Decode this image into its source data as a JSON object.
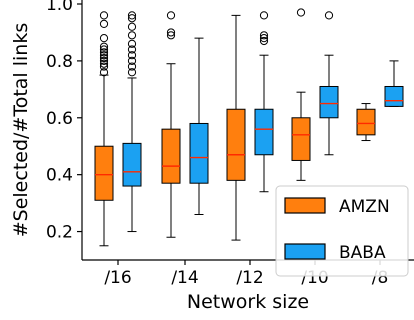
{
  "chart_data": {
    "type": "box",
    "xlabel": "Network size",
    "ylabel": "#Selected/#Total links",
    "categories": [
      "/16",
      "/14",
      "/12",
      "/10",
      "/8"
    ],
    "ylim": [
      0.1,
      1.0
    ],
    "yticks": [
      "0.2",
      "0.4",
      "0.6",
      "0.8",
      "1.0"
    ],
    "legend": {
      "placement": "lower-right"
    },
    "series": [
      {
        "name": "AMZN",
        "color": "#ff7f0e",
        "boxes": [
          {
            "whisker_low": 0.15,
            "q1": 0.31,
            "median": 0.4,
            "q3": 0.5,
            "whisker_high": 0.75,
            "outliers": [
              0.76,
              0.78,
              0.79,
              0.8,
              0.81,
              0.82,
              0.83,
              0.84,
              0.85,
              0.88,
              0.93,
              0.96
            ]
          },
          {
            "whisker_low": 0.18,
            "q1": 0.37,
            "median": 0.43,
            "q3": 0.56,
            "whisker_high": 0.79,
            "outliers": [
              0.89,
              0.9,
              0.96
            ]
          },
          {
            "whisker_low": 0.17,
            "q1": 0.38,
            "median": 0.47,
            "q3": 0.63,
            "whisker_high": 0.96,
            "outliers": []
          },
          {
            "whisker_low": 0.38,
            "q1": 0.45,
            "median": 0.54,
            "q3": 0.6,
            "whisker_high": 0.69,
            "outliers": [
              0.97
            ]
          },
          {
            "whisker_low": 0.52,
            "q1": 0.54,
            "median": 0.58,
            "q3": 0.63,
            "whisker_high": 0.65,
            "outliers": []
          }
        ]
      },
      {
        "name": "BABA",
        "color": "#1ba1f2",
        "boxes": [
          {
            "whisker_low": 0.2,
            "q1": 0.36,
            "median": 0.41,
            "q3": 0.51,
            "whisker_high": 0.74,
            "outliers": [
              0.76,
              0.78,
              0.8,
              0.82,
              0.84,
              0.86,
              0.89,
              0.92,
              0.95,
              0.96
            ]
          },
          {
            "whisker_low": 0.26,
            "q1": 0.37,
            "median": 0.46,
            "q3": 0.58,
            "whisker_high": 0.88,
            "outliers": []
          },
          {
            "whisker_low": 0.34,
            "q1": 0.47,
            "median": 0.56,
            "q3": 0.63,
            "whisker_high": 0.82,
            "outliers": [
              0.87,
              0.88,
              0.89,
              0.96
            ]
          },
          {
            "whisker_low": 0.47,
            "q1": 0.6,
            "median": 0.65,
            "q3": 0.71,
            "whisker_high": 0.82,
            "outliers": [
              0.96
            ]
          },
          {
            "whisker_low": 0.64,
            "q1": 0.64,
            "median": 0.66,
            "q3": 0.71,
            "whisker_high": 0.8,
            "outliers": []
          }
        ]
      }
    ]
  }
}
